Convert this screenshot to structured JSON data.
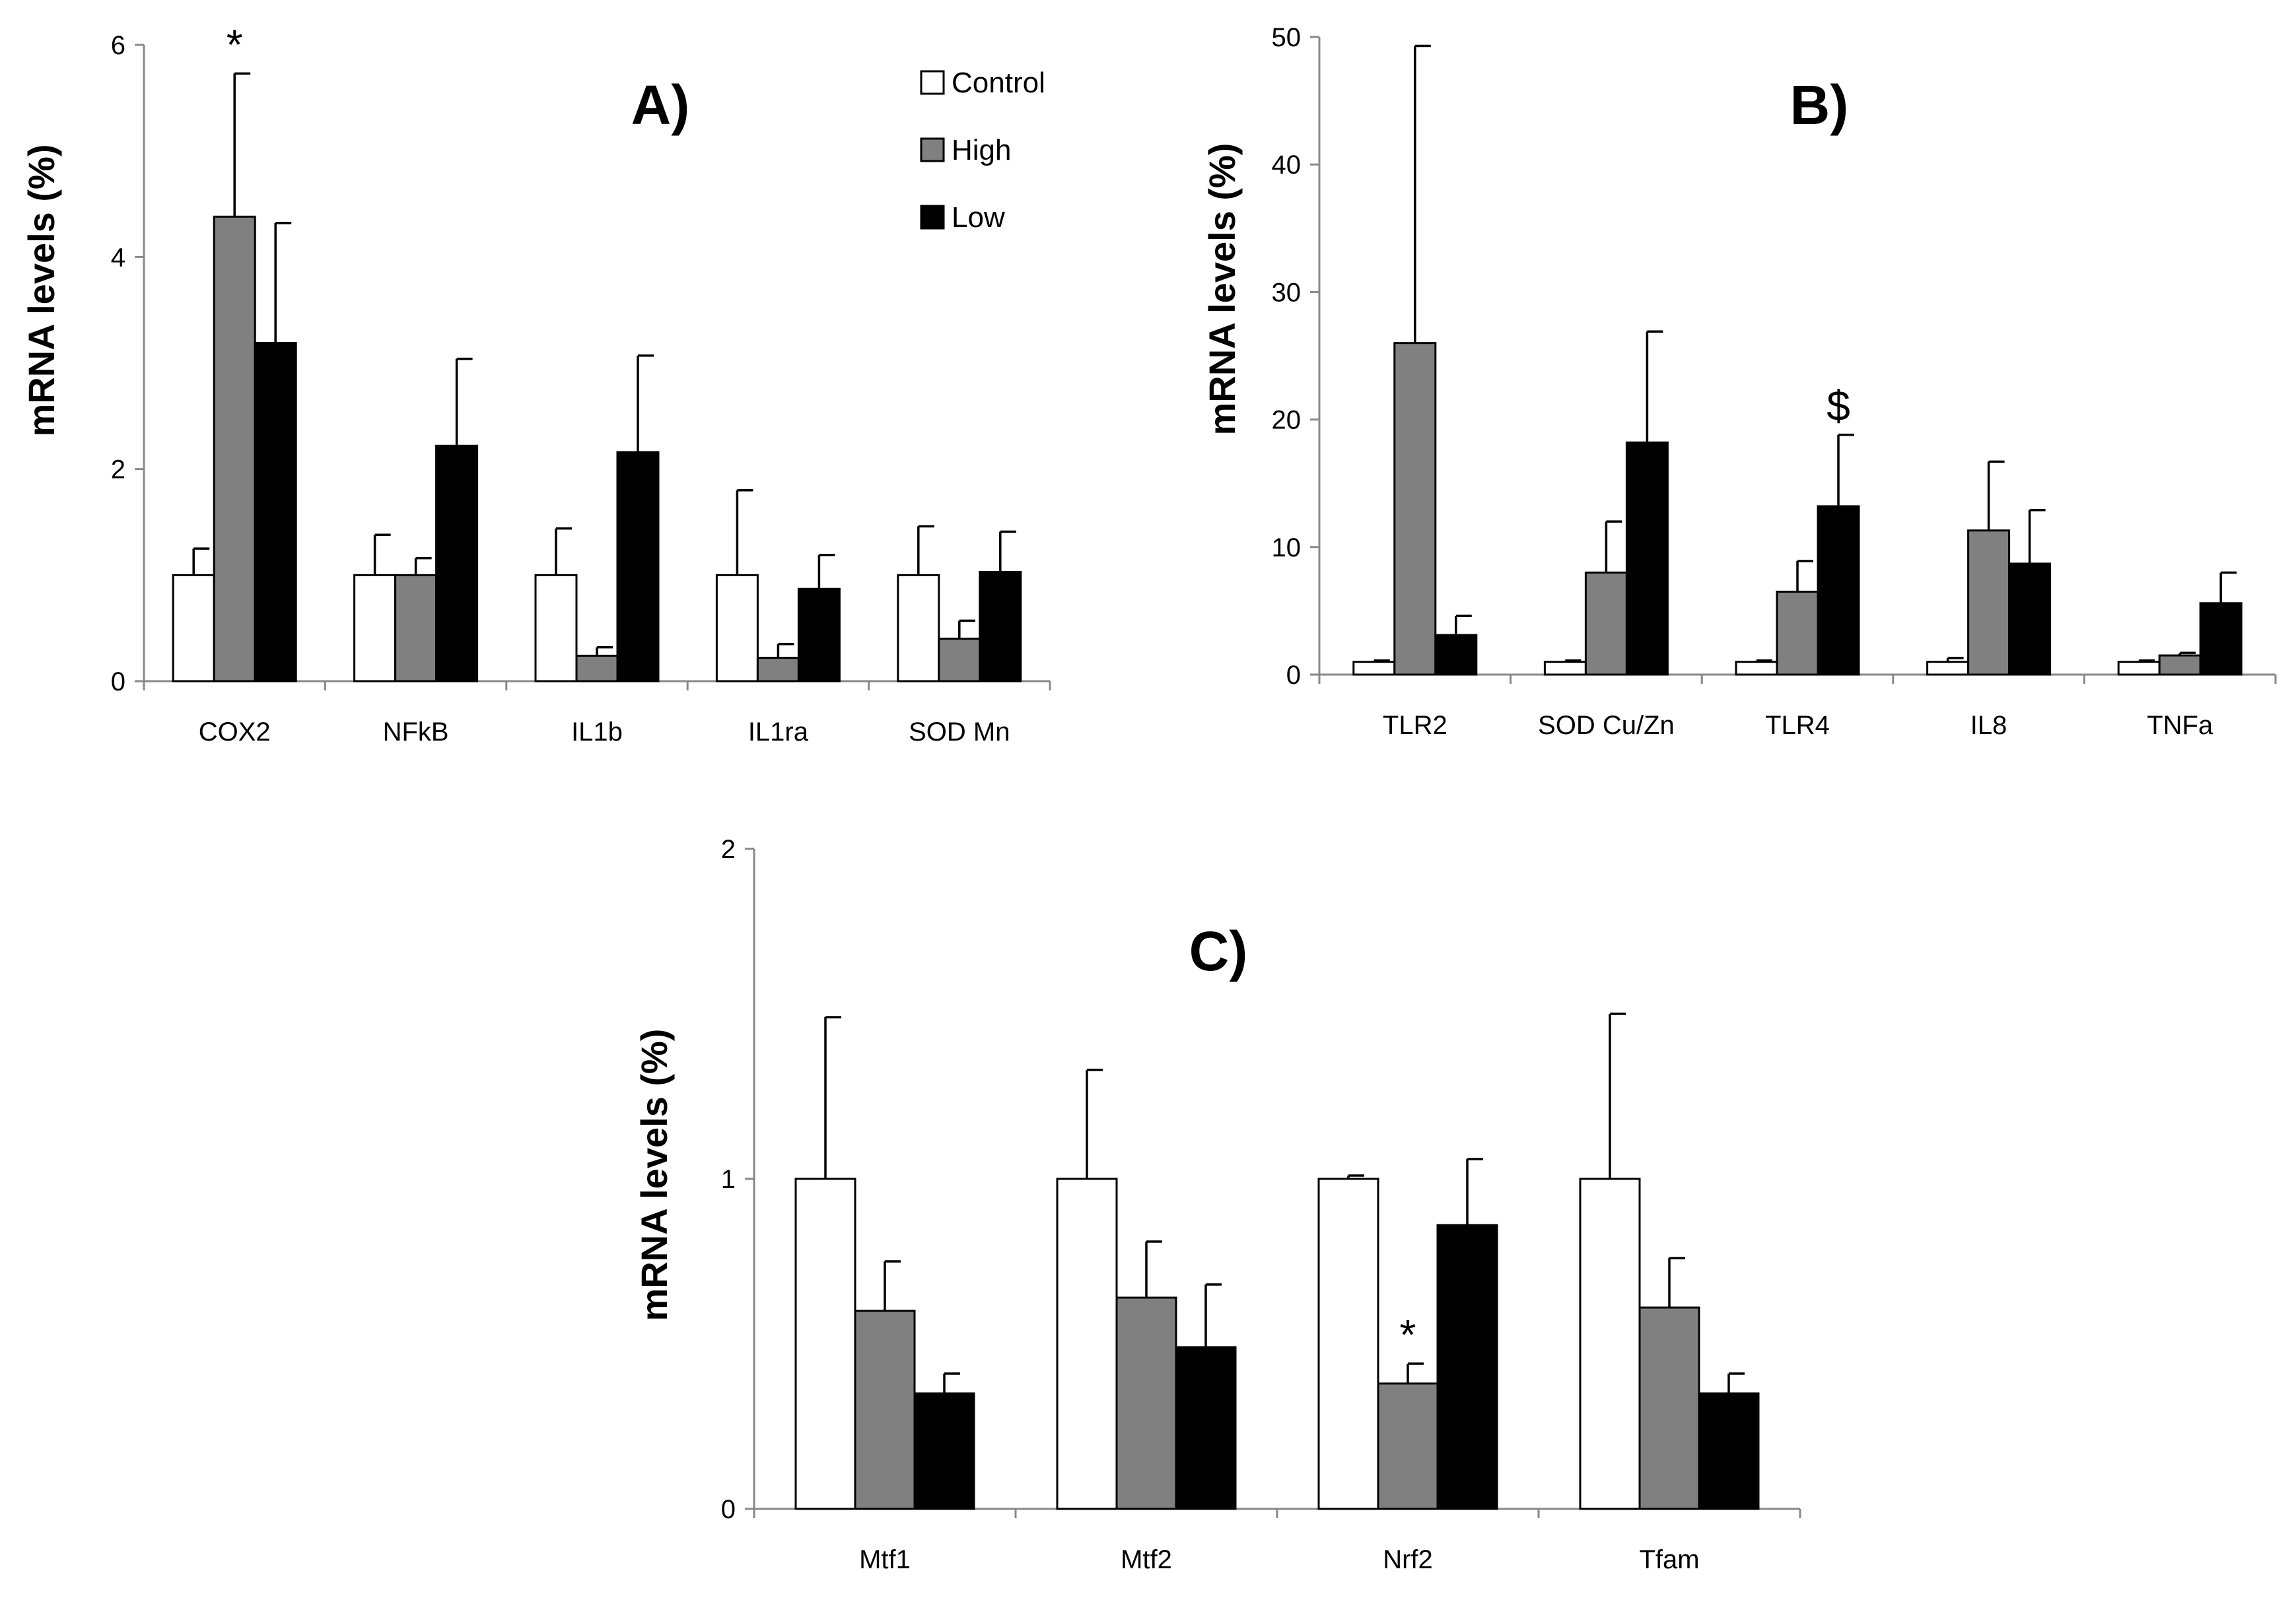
{
  "colors": {
    "Control": "#ffffff",
    "High": "#808080",
    "Low": "#000000"
  },
  "chart_data": [
    {
      "type": "bar",
      "panel": "A)",
      "ylabel": "mRNA levels (%)",
      "ylim": [
        0,
        6
      ],
      "yticks": [
        0,
        2,
        4,
        6
      ],
      "categories": [
        "COX2",
        "NFkB",
        "IL1b",
        "IL1ra",
        "SOD Mn"
      ],
      "legend": {
        "placement": "top-right",
        "entries": [
          "Control",
          "High",
          "Low"
        ]
      },
      "series": [
        {
          "name": "Control",
          "values": [
            1,
            1,
            1,
            1,
            1
          ],
          "errors": [
            0.25,
            0.38,
            0.44,
            0.8,
            0.46
          ]
        },
        {
          "name": "High",
          "values": [
            4.38,
            1.0,
            0.24,
            0.22,
            0.4
          ],
          "errors": [
            1.35,
            0.16,
            0.08,
            0.13,
            0.17
          ]
        },
        {
          "name": "Low",
          "values": [
            3.19,
            2.22,
            2.16,
            0.87,
            1.03
          ],
          "errors": [
            1.13,
            0.82,
            0.91,
            0.32,
            0.38
          ]
        }
      ],
      "annotations": [
        {
          "category": "COX2",
          "series": "High",
          "text": "*"
        }
      ]
    },
    {
      "type": "bar",
      "panel": "B)",
      "ylabel": "mRNA levels (%)",
      "ylim": [
        0,
        50
      ],
      "yticks": [
        0,
        10,
        20,
        30,
        40,
        50
      ],
      "categories": [
        "TLR2",
        "SOD Cu/Zn",
        "TLR4",
        "IL8",
        "TNFa"
      ],
      "series": [
        {
          "name": "Control",
          "values": [
            1,
            1,
            1,
            1,
            1
          ],
          "errors": [
            0.1,
            0.1,
            0.1,
            0.3,
            0.1
          ]
        },
        {
          "name": "High",
          "values": [
            26,
            8,
            6.5,
            11.3,
            1.5
          ],
          "errors": [
            23.3,
            4,
            2.4,
            5.4,
            0.2
          ]
        },
        {
          "name": "Low",
          "values": [
            3.1,
            18.2,
            13.2,
            8.7,
            5.6
          ],
          "errors": [
            1.5,
            8.7,
            5.6,
            4.2,
            2.4
          ]
        }
      ],
      "annotations": [
        {
          "category": "TLR4",
          "series": "Low",
          "text": "$"
        }
      ]
    },
    {
      "type": "bar",
      "panel": "C)",
      "ylabel": "mRNA levels (%)",
      "ylim": [
        0,
        2
      ],
      "yticks": [
        0,
        1,
        2
      ],
      "categories": [
        "Mtf1",
        "Mtf2",
        "Nrf2",
        "Tfam"
      ],
      "series": [
        {
          "name": "Control",
          "values": [
            1,
            1,
            1,
            1
          ],
          "errors": [
            0.49,
            0.33,
            0.01,
            0.5
          ]
        },
        {
          "name": "High",
          "values": [
            0.6,
            0.64,
            0.38,
            0.61
          ],
          "errors": [
            0.15,
            0.17,
            0.06,
            0.15
          ]
        },
        {
          "name": "Low",
          "values": [
            0.35,
            0.49,
            0.86,
            0.35
          ],
          "errors": [
            0.06,
            0.19,
            0.2,
            0.06
          ]
        }
      ],
      "annotations": [
        {
          "category": "Nrf2",
          "series": "High",
          "text": "*"
        }
      ]
    }
  ]
}
